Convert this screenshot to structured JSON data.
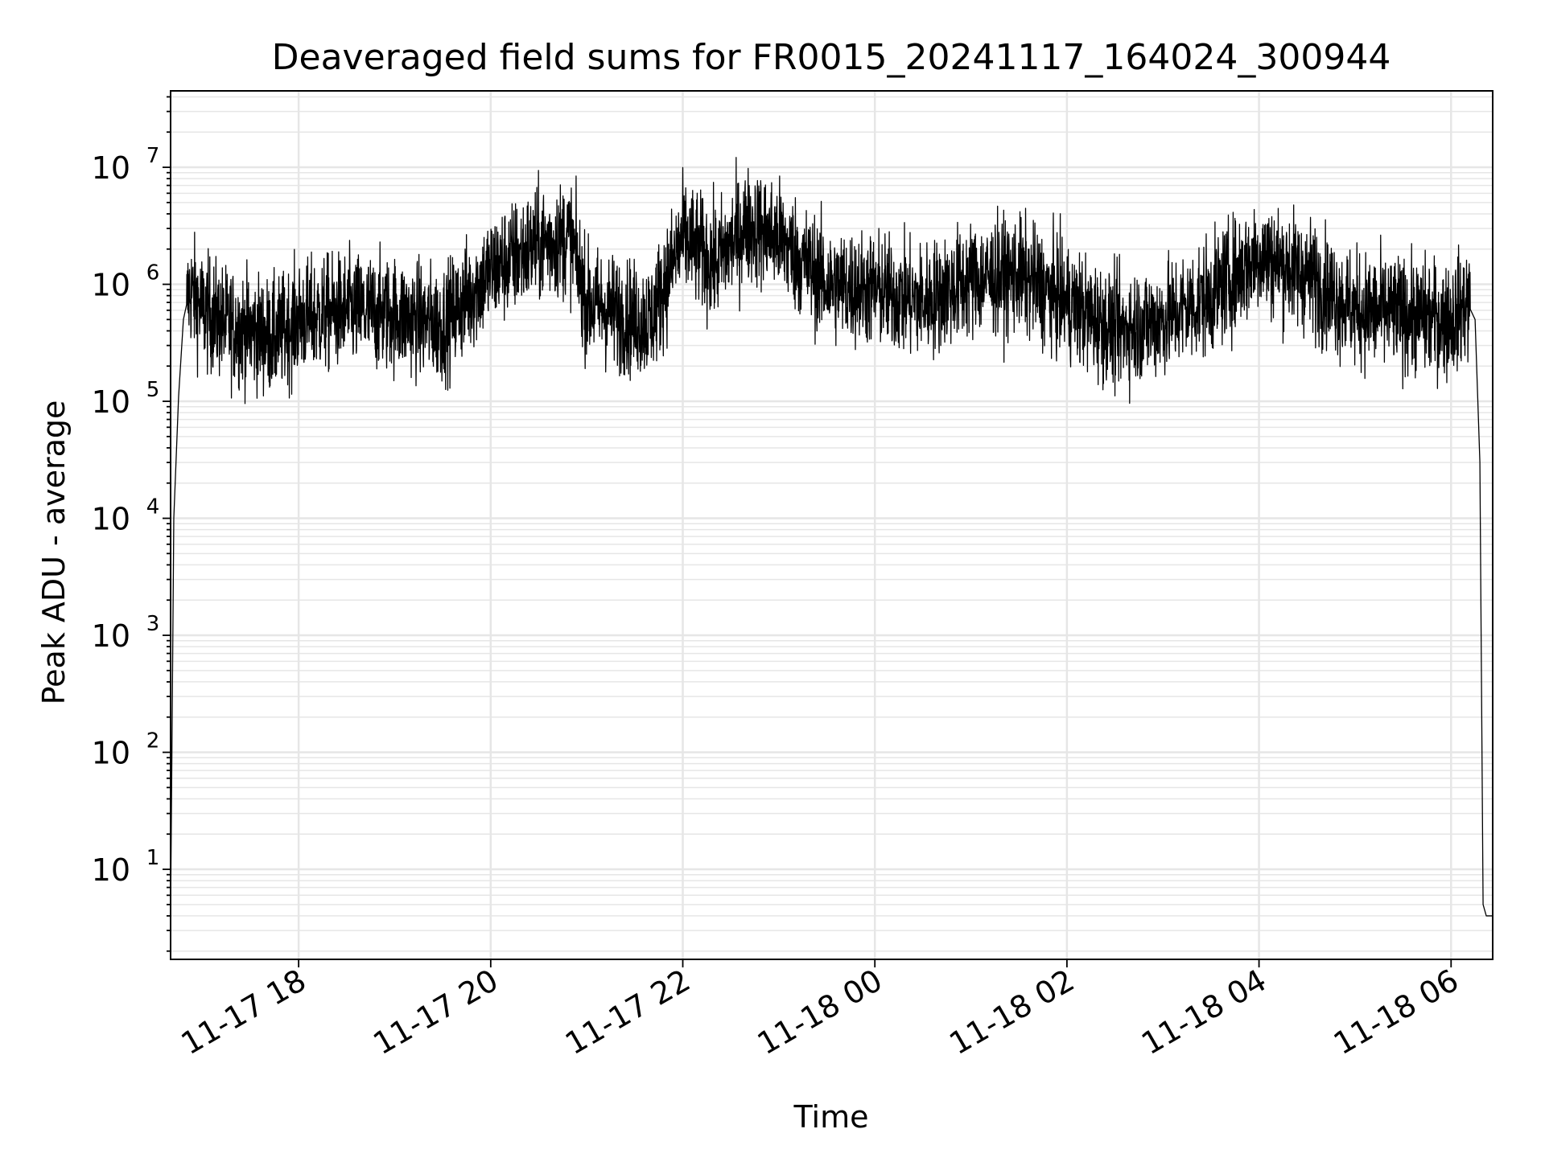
{
  "chart_data": {
    "type": "line",
    "title": "Deaveraged field sums for FR0015_20241117_164024_300944",
    "xlabel": "Time",
    "ylabel": "Peak ADU - average",
    "yscale": "log",
    "ylim": [
      1.7,
      45000000
    ],
    "xlim": [
      "2024-11-17 16:40",
      "2024-11-18 06:26"
    ],
    "grid": true,
    "line_color": "#000000",
    "grid_color": "#e6e6e6",
    "x_ticks": [
      {
        "t": "2024-11-17 18:00",
        "label": "11-17 18"
      },
      {
        "t": "2024-11-17 20:00",
        "label": "11-17 20"
      },
      {
        "t": "2024-11-17 22:00",
        "label": "11-17 22"
      },
      {
        "t": "2024-11-18 00:00",
        "label": "11-18 00"
      },
      {
        "t": "2024-11-18 02:00",
        "label": "11-18 02"
      },
      {
        "t": "2024-11-18 04:00",
        "label": "11-18 04"
      },
      {
        "t": "2024-11-18 06:00",
        "label": "11-18 06"
      }
    ],
    "y_ticks": [
      {
        "value": 10,
        "base": "10",
        "exp": "1"
      },
      {
        "value": 100,
        "base": "10",
        "exp": "2"
      },
      {
        "value": 1000,
        "base": "10",
        "exp": "3"
      },
      {
        "value": 10000,
        "base": "10",
        "exp": "4"
      },
      {
        "value": 100000,
        "base": "10",
        "exp": "5"
      },
      {
        "value": 1000000,
        "base": "10",
        "exp": "6"
      },
      {
        "value": 10000000,
        "base": "10",
        "exp": "7"
      }
    ],
    "series": [
      {
        "x": [
          "2024-11-17 16:40",
          "2024-11-17 16:42",
          "2024-11-17 16:45",
          "2024-11-17 16:48",
          "2024-11-17 16:52",
          "2024-11-17 17:00",
          "2024-11-17 17:15",
          "2024-11-17 17:30",
          "2024-11-17 17:45",
          "2024-11-17 18:00",
          "2024-11-17 18:30",
          "2024-11-17 19:00",
          "2024-11-17 19:30",
          "2024-11-17 20:00",
          "2024-11-17 20:30",
          "2024-11-17 20:50",
          "2024-11-17 21:00",
          "2024-11-17 21:30",
          "2024-11-17 21:40",
          "2024-11-17 22:00",
          "2024-11-17 22:20",
          "2024-11-17 22:40",
          "2024-11-17 23:00",
          "2024-11-17 23:30",
          "2024-11-18 00:00",
          "2024-11-18 00:30",
          "2024-11-18 01:00",
          "2024-11-18 01:30",
          "2024-11-18 02:00",
          "2024-11-18 02:30",
          "2024-11-18 03:00",
          "2024-11-18 03:30",
          "2024-11-18 04:00",
          "2024-11-18 04:30",
          "2024-11-18 05:00",
          "2024-11-18 05:30",
          "2024-11-18 06:00",
          "2024-11-18 06:10",
          "2024-11-18 06:15",
          "2024-11-18 06:18",
          "2024-11-18 06:20",
          "2024-11-18 06:22",
          "2024-11-18 06:23",
          "2024-11-18 06:26"
        ],
        "values": [
          4,
          10000,
          110000,
          500000,
          900000,
          600000,
          450000,
          400000,
          350000,
          500000,
          600000,
          550000,
          450000,
          1300000,
          2200000,
          2500000,
          700000,
          500000,
          500000,
          2500000,
          1500000,
          3200000,
          2500000,
          1000000,
          900000,
          700000,
          1100000,
          1200000,
          700000,
          400000,
          500000,
          800000,
          1800000,
          1200000,
          600000,
          550000,
          500000,
          700000,
          500000,
          30000,
          5,
          4,
          4,
          4
        ],
        "noise_amplitude_log10": 0.35
      }
    ]
  }
}
